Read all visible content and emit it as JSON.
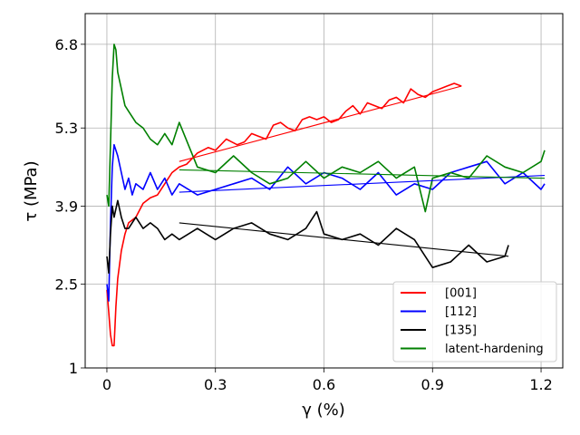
{
  "chart_data": {
    "type": "line",
    "xlabel": "γ (%)",
    "ylabel": "τ (MPa)",
    "xlim": [
      -0.06,
      1.26
    ],
    "ylim": [
      1.0,
      7.35
    ],
    "xticks": [
      0,
      0.3,
      0.6,
      0.9,
      1.2
    ],
    "xtick_labels": [
      "0",
      "0.3",
      "0.6",
      "0.9",
      "1.2"
    ],
    "yticks": [
      1.0,
      2.5,
      3.9,
      5.3,
      6.8
    ],
    "ytick_labels": [
      "1",
      "2.5",
      "3.9",
      "5.3",
      "6.8"
    ],
    "grid": true,
    "legend_position": "lower-right",
    "series": [
      {
        "name": "[001]",
        "color": "#ff0000",
        "x": [
          0.0,
          0.005,
          0.01,
          0.015,
          0.02,
          0.025,
          0.03,
          0.04,
          0.05,
          0.06,
          0.08,
          0.1,
          0.12,
          0.14,
          0.16,
          0.18,
          0.2,
          0.22,
          0.25,
          0.28,
          0.3,
          0.33,
          0.36,
          0.38,
          0.4,
          0.42,
          0.44,
          0.46,
          0.48,
          0.5,
          0.52,
          0.54,
          0.56,
          0.58,
          0.6,
          0.62,
          0.64,
          0.66,
          0.68,
          0.7,
          0.72,
          0.74,
          0.76,
          0.78,
          0.8,
          0.82,
          0.84,
          0.86,
          0.88,
          0.9,
          0.92,
          0.94,
          0.96,
          0.98
        ],
        "y": [
          2.4,
          2.0,
          1.6,
          1.4,
          1.4,
          2.1,
          2.6,
          3.1,
          3.4,
          3.6,
          3.7,
          3.95,
          4.05,
          4.1,
          4.3,
          4.5,
          4.6,
          4.65,
          4.85,
          4.95,
          4.9,
          5.1,
          5.0,
          5.05,
          5.2,
          5.15,
          5.1,
          5.35,
          5.4,
          5.3,
          5.25,
          5.45,
          5.5,
          5.45,
          5.5,
          5.4,
          5.45,
          5.6,
          5.7,
          5.55,
          5.75,
          5.7,
          5.65,
          5.8,
          5.85,
          5.75,
          6.0,
          5.9,
          5.85,
          5.95,
          6.0,
          6.05,
          6.1,
          6.05
        ]
      },
      {
        "name": "[112]",
        "color": "#0000ff",
        "x": [
          0.0,
          0.005,
          0.01,
          0.015,
          0.02,
          0.03,
          0.04,
          0.05,
          0.06,
          0.07,
          0.08,
          0.1,
          0.12,
          0.14,
          0.16,
          0.18,
          0.2,
          0.25,
          0.3,
          0.35,
          0.4,
          0.45,
          0.5,
          0.55,
          0.6,
          0.65,
          0.7,
          0.75,
          0.8,
          0.85,
          0.9,
          0.95,
          1.0,
          1.05,
          1.1,
          1.15,
          1.2,
          1.21
        ],
        "y": [
          2.5,
          2.2,
          3.6,
          4.6,
          5.0,
          4.8,
          4.5,
          4.2,
          4.4,
          4.1,
          4.3,
          4.2,
          4.5,
          4.2,
          4.4,
          4.1,
          4.3,
          4.1,
          4.2,
          4.3,
          4.4,
          4.2,
          4.6,
          4.3,
          4.5,
          4.4,
          4.2,
          4.5,
          4.1,
          4.3,
          4.2,
          4.5,
          4.6,
          4.7,
          4.3,
          4.5,
          4.2,
          4.3
        ]
      },
      {
        "name": "[135]",
        "color": "#000000",
        "x": [
          0.0,
          0.005,
          0.01,
          0.015,
          0.02,
          0.03,
          0.04,
          0.05,
          0.06,
          0.08,
          0.1,
          0.12,
          0.14,
          0.16,
          0.18,
          0.2,
          0.25,
          0.3,
          0.35,
          0.4,
          0.45,
          0.5,
          0.55,
          0.58,
          0.6,
          0.65,
          0.7,
          0.75,
          0.8,
          0.85,
          0.88,
          0.9,
          0.95,
          1.0,
          1.05,
          1.1,
          1.11
        ],
        "y": [
          3.0,
          2.7,
          3.4,
          3.9,
          3.7,
          4.0,
          3.7,
          3.5,
          3.5,
          3.7,
          3.5,
          3.6,
          3.5,
          3.3,
          3.4,
          3.3,
          3.5,
          3.3,
          3.5,
          3.6,
          3.4,
          3.3,
          3.5,
          3.8,
          3.4,
          3.3,
          3.4,
          3.2,
          3.5,
          3.3,
          3.0,
          2.8,
          2.9,
          3.2,
          2.9,
          3.0,
          3.2
        ]
      },
      {
        "name": "latent-hardening",
        "color": "#008000",
        "x": [
          0.0,
          0.005,
          0.01,
          0.015,
          0.02,
          0.025,
          0.03,
          0.04,
          0.05,
          0.06,
          0.08,
          0.1,
          0.12,
          0.14,
          0.16,
          0.18,
          0.2,
          0.25,
          0.3,
          0.35,
          0.4,
          0.45,
          0.5,
          0.55,
          0.6,
          0.65,
          0.7,
          0.75,
          0.8,
          0.85,
          0.88,
          0.9,
          0.95,
          1.0,
          1.05,
          1.1,
          1.15,
          1.2,
          1.21
        ],
        "y": [
          4.1,
          3.9,
          5.0,
          6.2,
          6.8,
          6.7,
          6.3,
          6.0,
          5.7,
          5.6,
          5.4,
          5.3,
          5.1,
          5.0,
          5.2,
          5.0,
          5.4,
          4.6,
          4.5,
          4.8,
          4.5,
          4.3,
          4.4,
          4.7,
          4.4,
          4.6,
          4.5,
          4.7,
          4.4,
          4.6,
          3.8,
          4.4,
          4.5,
          4.4,
          4.8,
          4.6,
          4.5,
          4.7,
          4.9
        ]
      }
    ],
    "trend_lines": [
      {
        "series": "[001]",
        "color": "#ff0000",
        "x": [
          0.2,
          0.98
        ],
        "y": [
          4.7,
          6.05
        ]
      },
      {
        "series": "[112]",
        "color": "#0000ff",
        "x": [
          0.2,
          1.21
        ],
        "y": [
          4.15,
          4.45
        ]
      },
      {
        "series": "[135]",
        "color": "#000000",
        "x": [
          0.2,
          1.11
        ],
        "y": [
          3.6,
          3.0
        ]
      },
      {
        "series": "latent-hardening",
        "color": "#008000",
        "x": [
          0.2,
          1.21
        ],
        "y": [
          4.55,
          4.4
        ]
      }
    ]
  }
}
